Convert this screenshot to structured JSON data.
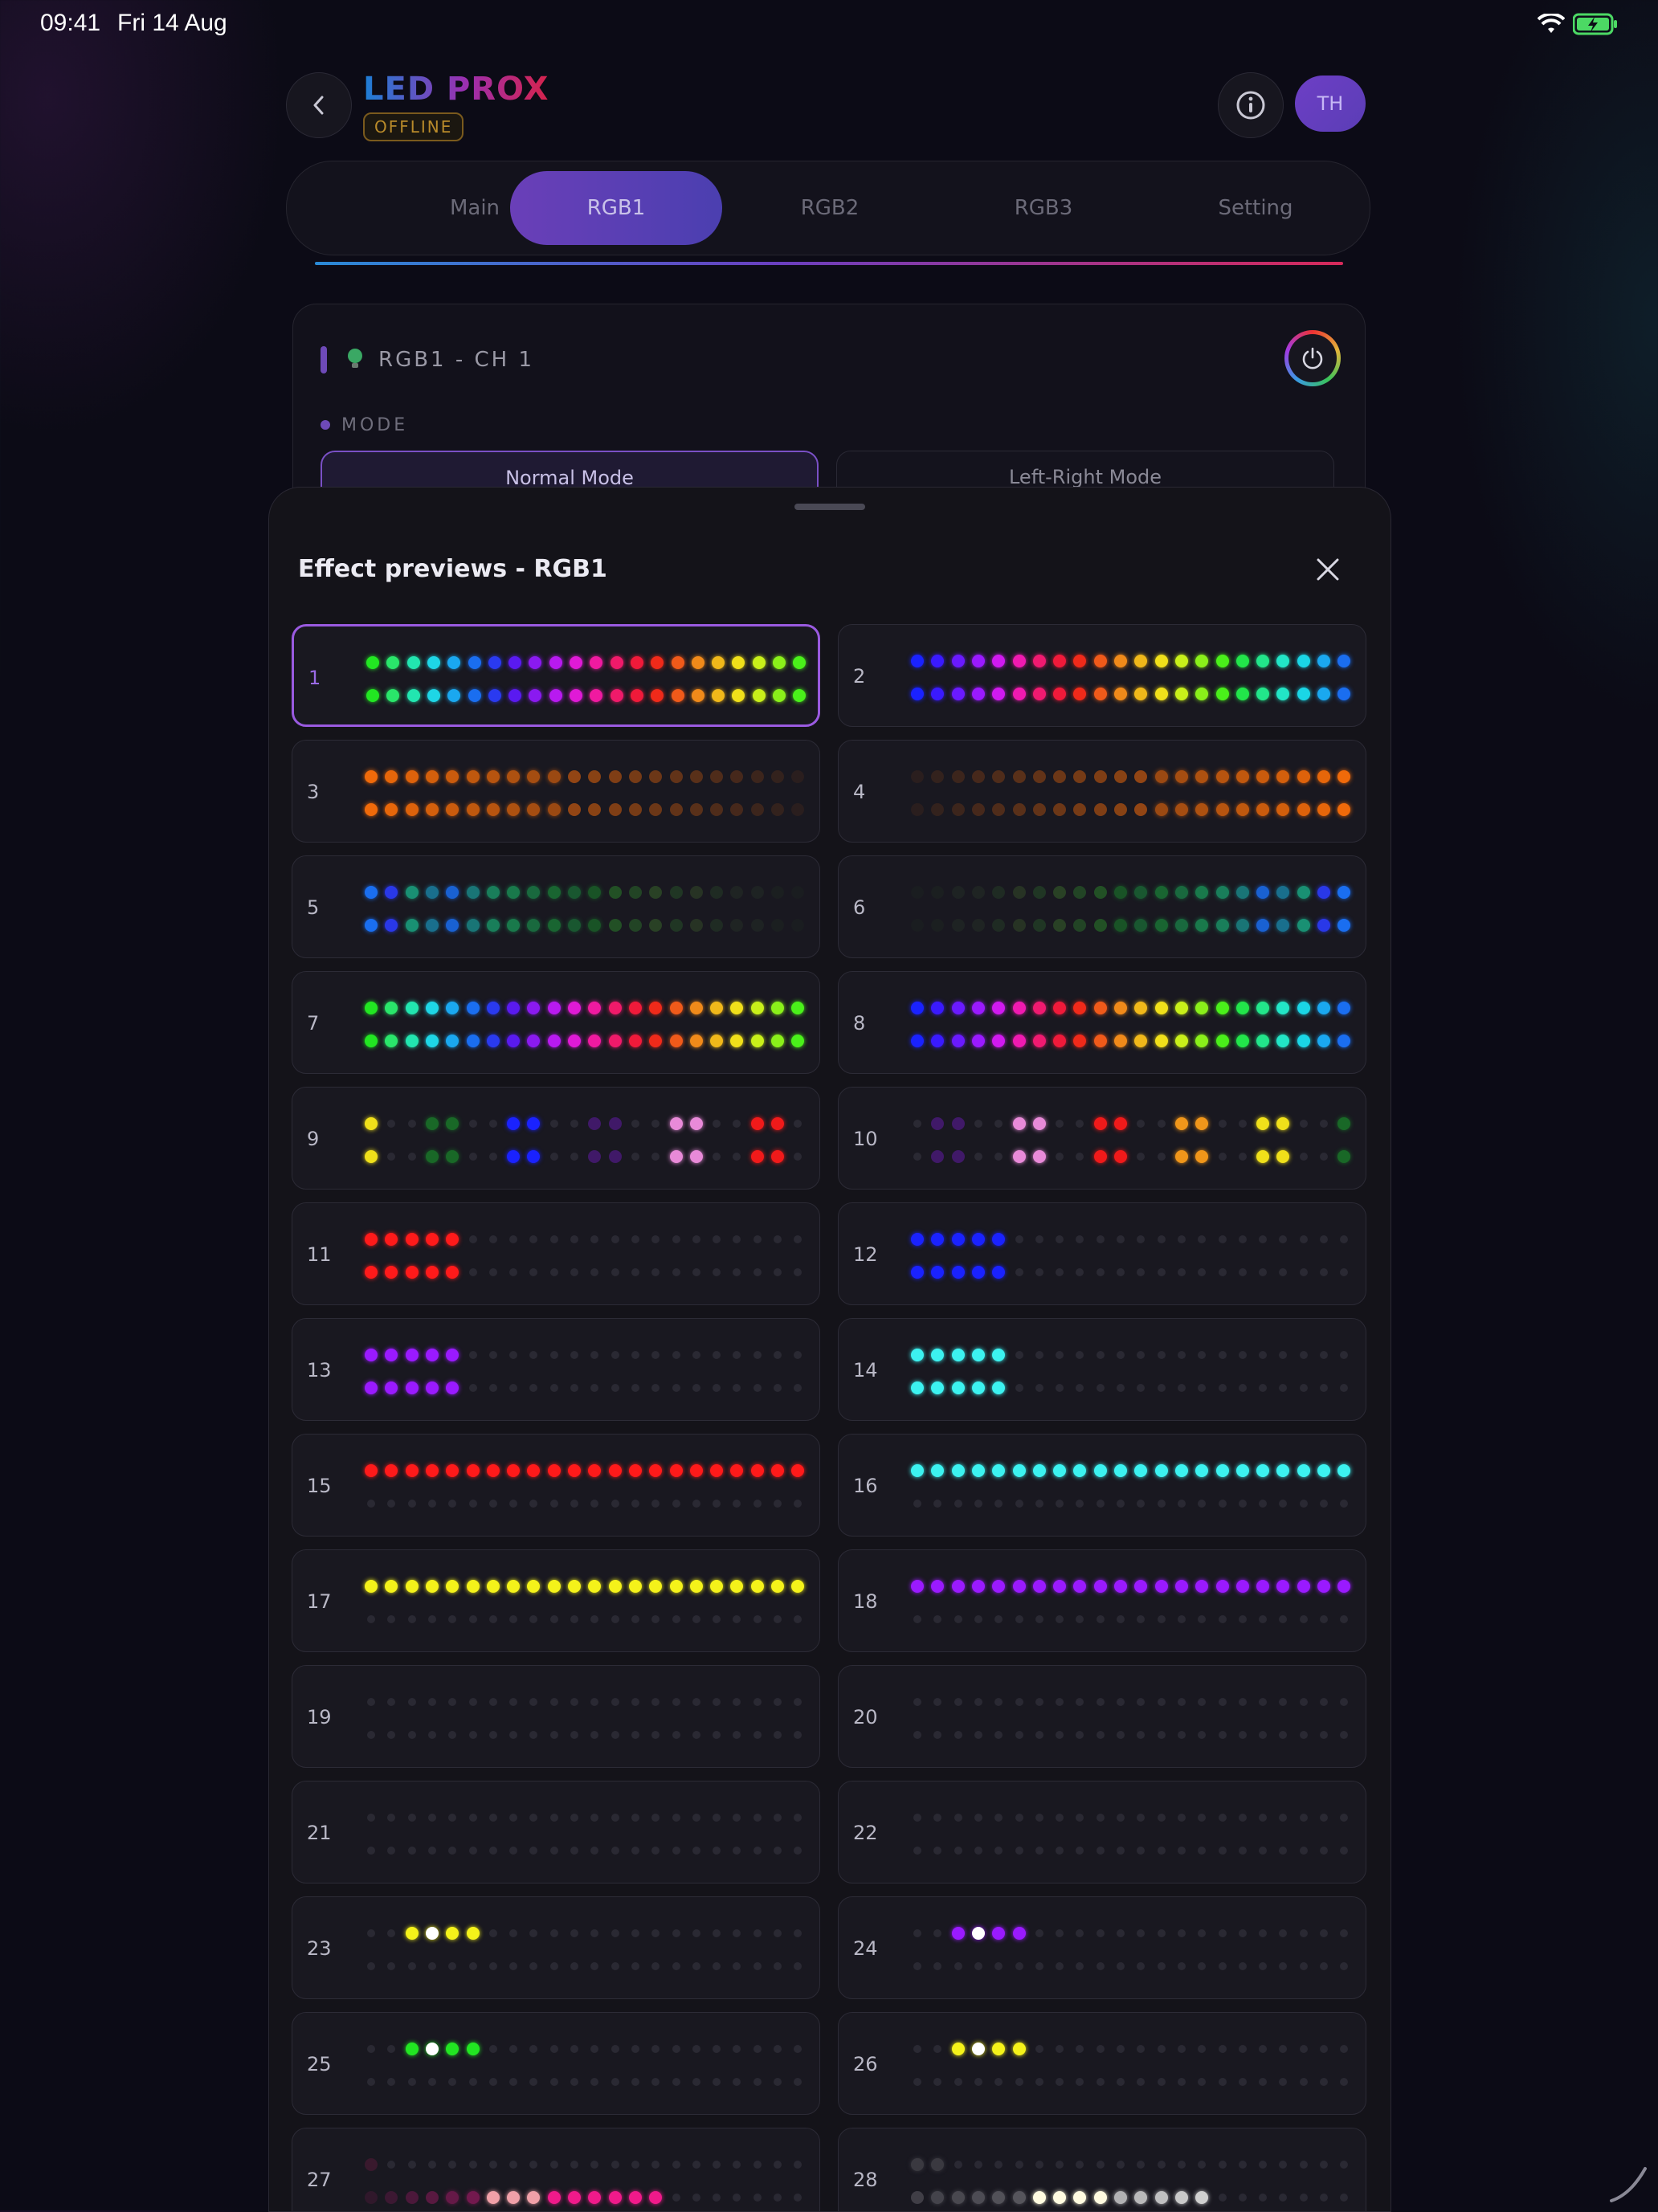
{
  "status": {
    "time": "09:41",
    "date": "Fri 14 Aug"
  },
  "header": {
    "title": "LED PROX",
    "status_badge": "OFFLINE",
    "avatar_initials": "TH"
  },
  "tabs": [
    {
      "label": "Main",
      "active": false
    },
    {
      "label": "RGB1",
      "active": true
    },
    {
      "label": "RGB2",
      "active": false
    },
    {
      "label": "RGB3",
      "active": false
    },
    {
      "label": "Setting",
      "active": false
    }
  ],
  "channel": {
    "title": "RGB1 - CH 1",
    "mode_label": "MODE",
    "modes": [
      "Normal Mode",
      "Left-Right Mode"
    ]
  },
  "sheet": {
    "title": "Effect previews - RGB1"
  },
  "effects": [
    {
      "id": "1",
      "selected": true,
      "preset": "rainbowG"
    },
    {
      "id": "2",
      "preset": "rainbowB"
    },
    {
      "id": "3",
      "preset": "fadeOrangeL"
    },
    {
      "id": "4",
      "preset": "fadeOrangeR"
    },
    {
      "id": "5",
      "preset": "fadeBlueL"
    },
    {
      "id": "6",
      "preset": "fadeBlueR"
    },
    {
      "id": "7",
      "preset": "rainbowG"
    },
    {
      "id": "8",
      "preset": "rainbowB"
    },
    {
      "id": "9",
      "preset": "pairs9"
    },
    {
      "id": "10",
      "preset": "pairs10"
    },
    {
      "id": "11",
      "preset": "block",
      "color": "#ff1a1a"
    },
    {
      "id": "12",
      "preset": "block",
      "color": "#1a22ff"
    },
    {
      "id": "13",
      "preset": "block",
      "color": "#9a1aff"
    },
    {
      "id": "14",
      "preset": "block",
      "color": "#3cf2f0"
    },
    {
      "id": "15",
      "preset": "line",
      "color": "#ff1a1a"
    },
    {
      "id": "16",
      "preset": "line",
      "color": "#3cf2f0"
    },
    {
      "id": "17",
      "preset": "line",
      "color": "#f4f21a"
    },
    {
      "id": "18",
      "preset": "line",
      "color": "#9a1aff"
    },
    {
      "id": "19",
      "preset": "off"
    },
    {
      "id": "20",
      "preset": "off"
    },
    {
      "id": "21",
      "preset": "off"
    },
    {
      "id": "22",
      "preset": "off"
    },
    {
      "id": "23",
      "preset": "comet",
      "color": "#f4f21a",
      "start": 2
    },
    {
      "id": "24",
      "preset": "comet",
      "color": "#9a1aff",
      "start": 2
    },
    {
      "id": "25",
      "preset": "comet",
      "color": "#22e622",
      "start": 2
    },
    {
      "id": "26",
      "preset": "comet",
      "color": "#f4f21a",
      "start": 2
    },
    {
      "id": "27",
      "preset": "pinkTrail"
    },
    {
      "id": "28",
      "preset": "whiteTrail"
    }
  ]
}
